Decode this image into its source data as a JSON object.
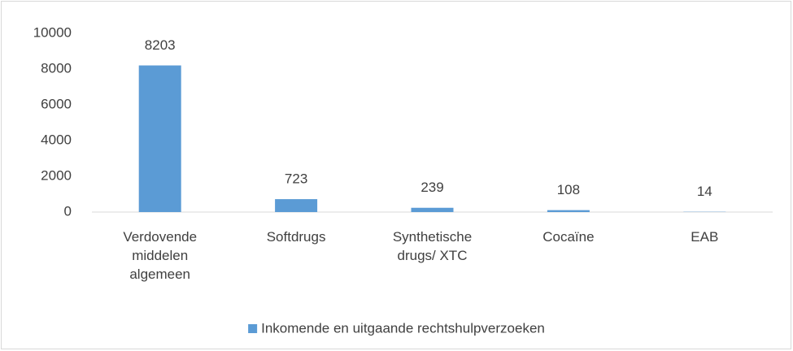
{
  "chart_data": {
    "type": "bar",
    "categories": [
      "Verdovende middelen algemeen",
      "Softdrugs",
      "Synthetische drugs/ XTC",
      "Cocaïne",
      "EAB"
    ],
    "series": [
      {
        "name": "Inkomende en uitgaande rechtshulpverzoeken",
        "color": "#5b9bd5",
        "values": [
          8203,
          723,
          239,
          108,
          14
        ]
      }
    ],
    "ylim": [
      0,
      10000
    ],
    "yticks": [
      0,
      2000,
      4000,
      6000,
      8000,
      10000
    ],
    "grid": false,
    "legend": "bottom"
  }
}
